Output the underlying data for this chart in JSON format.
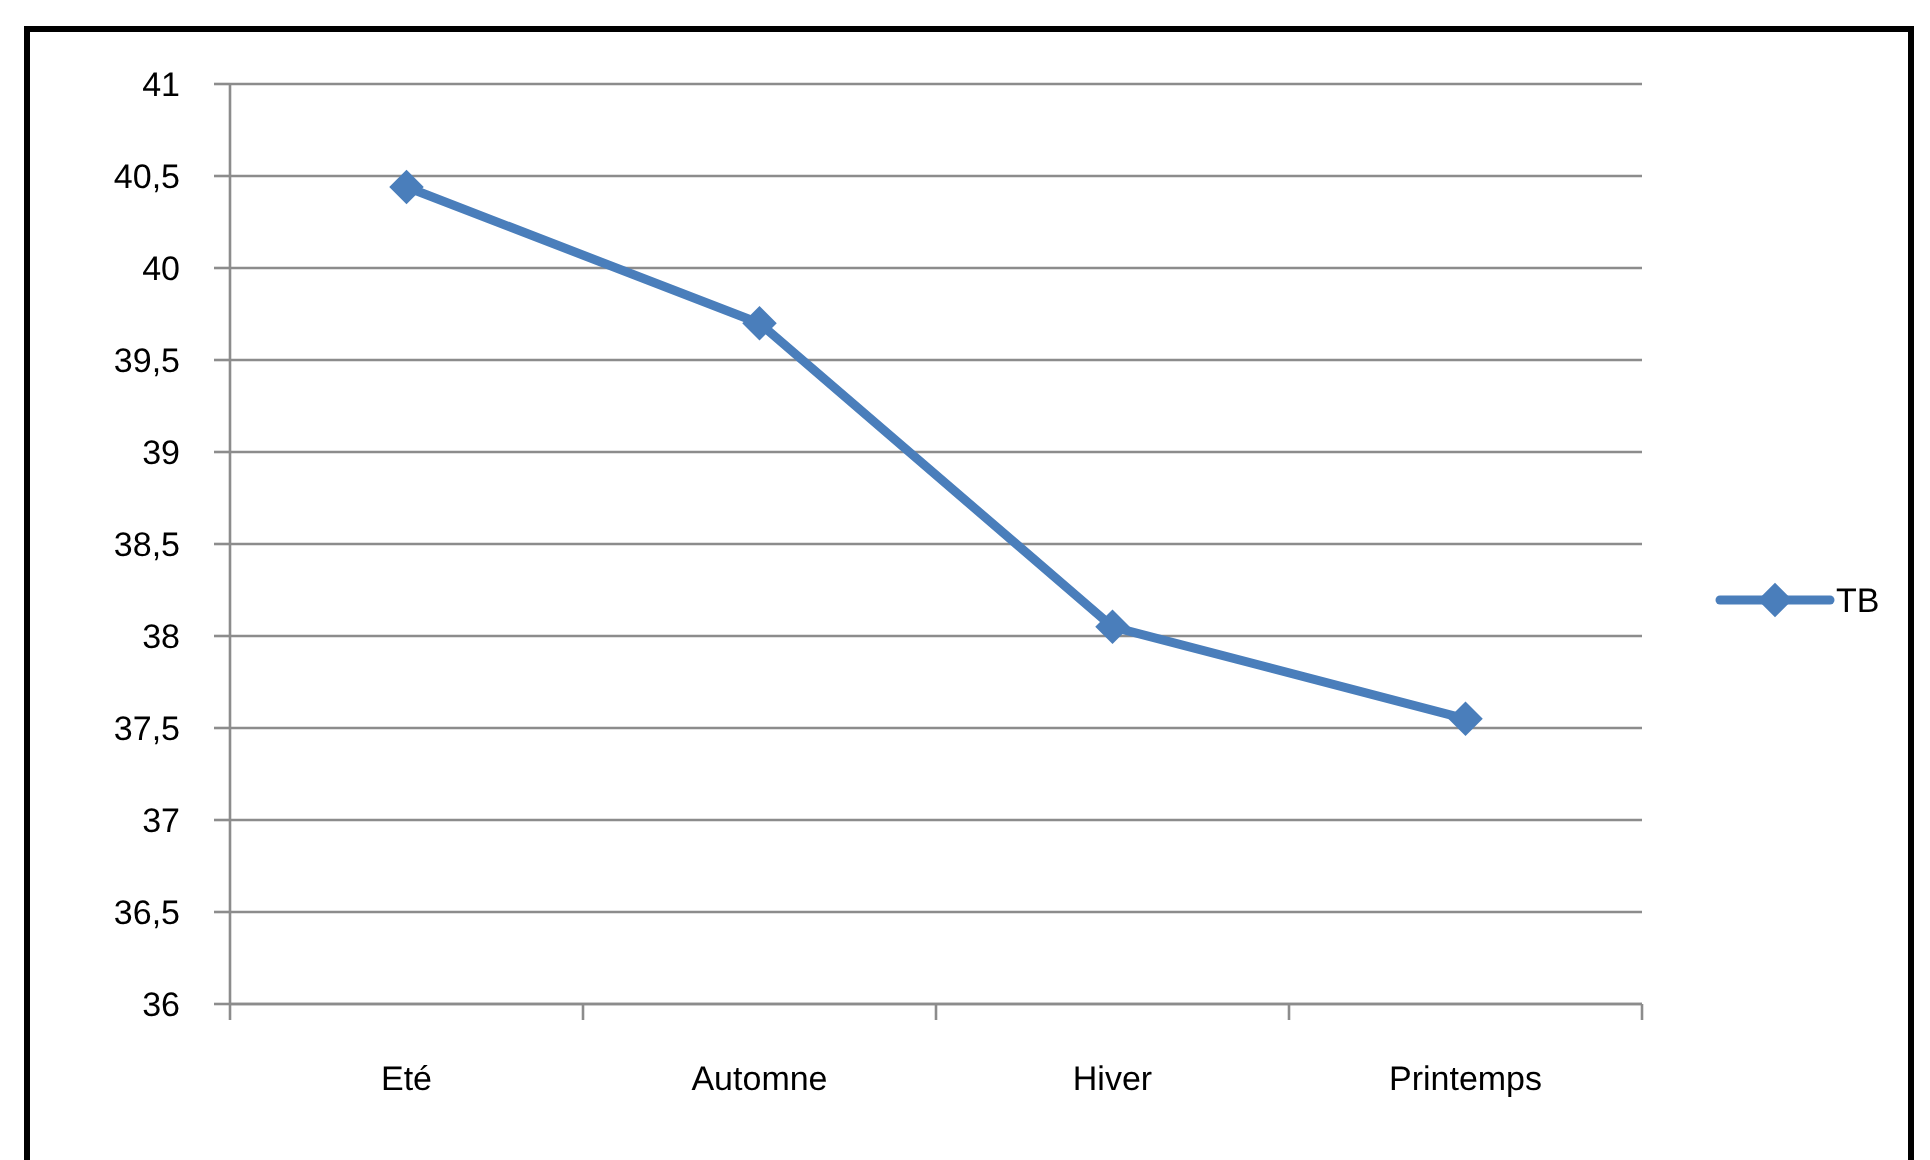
{
  "chart_data": {
    "type": "line",
    "categories": [
      "Eté",
      "Automne",
      "Hiver",
      "Printemps"
    ],
    "series": [
      {
        "name": "TB",
        "color": "#4a7ebb",
        "values": [
          40.44,
          39.7,
          38.05,
          37.55
        ]
      }
    ],
    "ylim": [
      36,
      41
    ],
    "yticks": [
      36,
      {
        "value": 36.5,
        "label": "36,5"
      },
      37,
      {
        "value": 37.5,
        "label": "37,5"
      },
      38,
      {
        "value": 38.5,
        "label": "38,5"
      },
      39,
      {
        "value": 39.5,
        "label": "39,5"
      },
      40,
      {
        "value": 40.5,
        "label": "40,5"
      },
      41
    ],
    "grid": "y",
    "legend": "right",
    "marker": "diamond"
  }
}
